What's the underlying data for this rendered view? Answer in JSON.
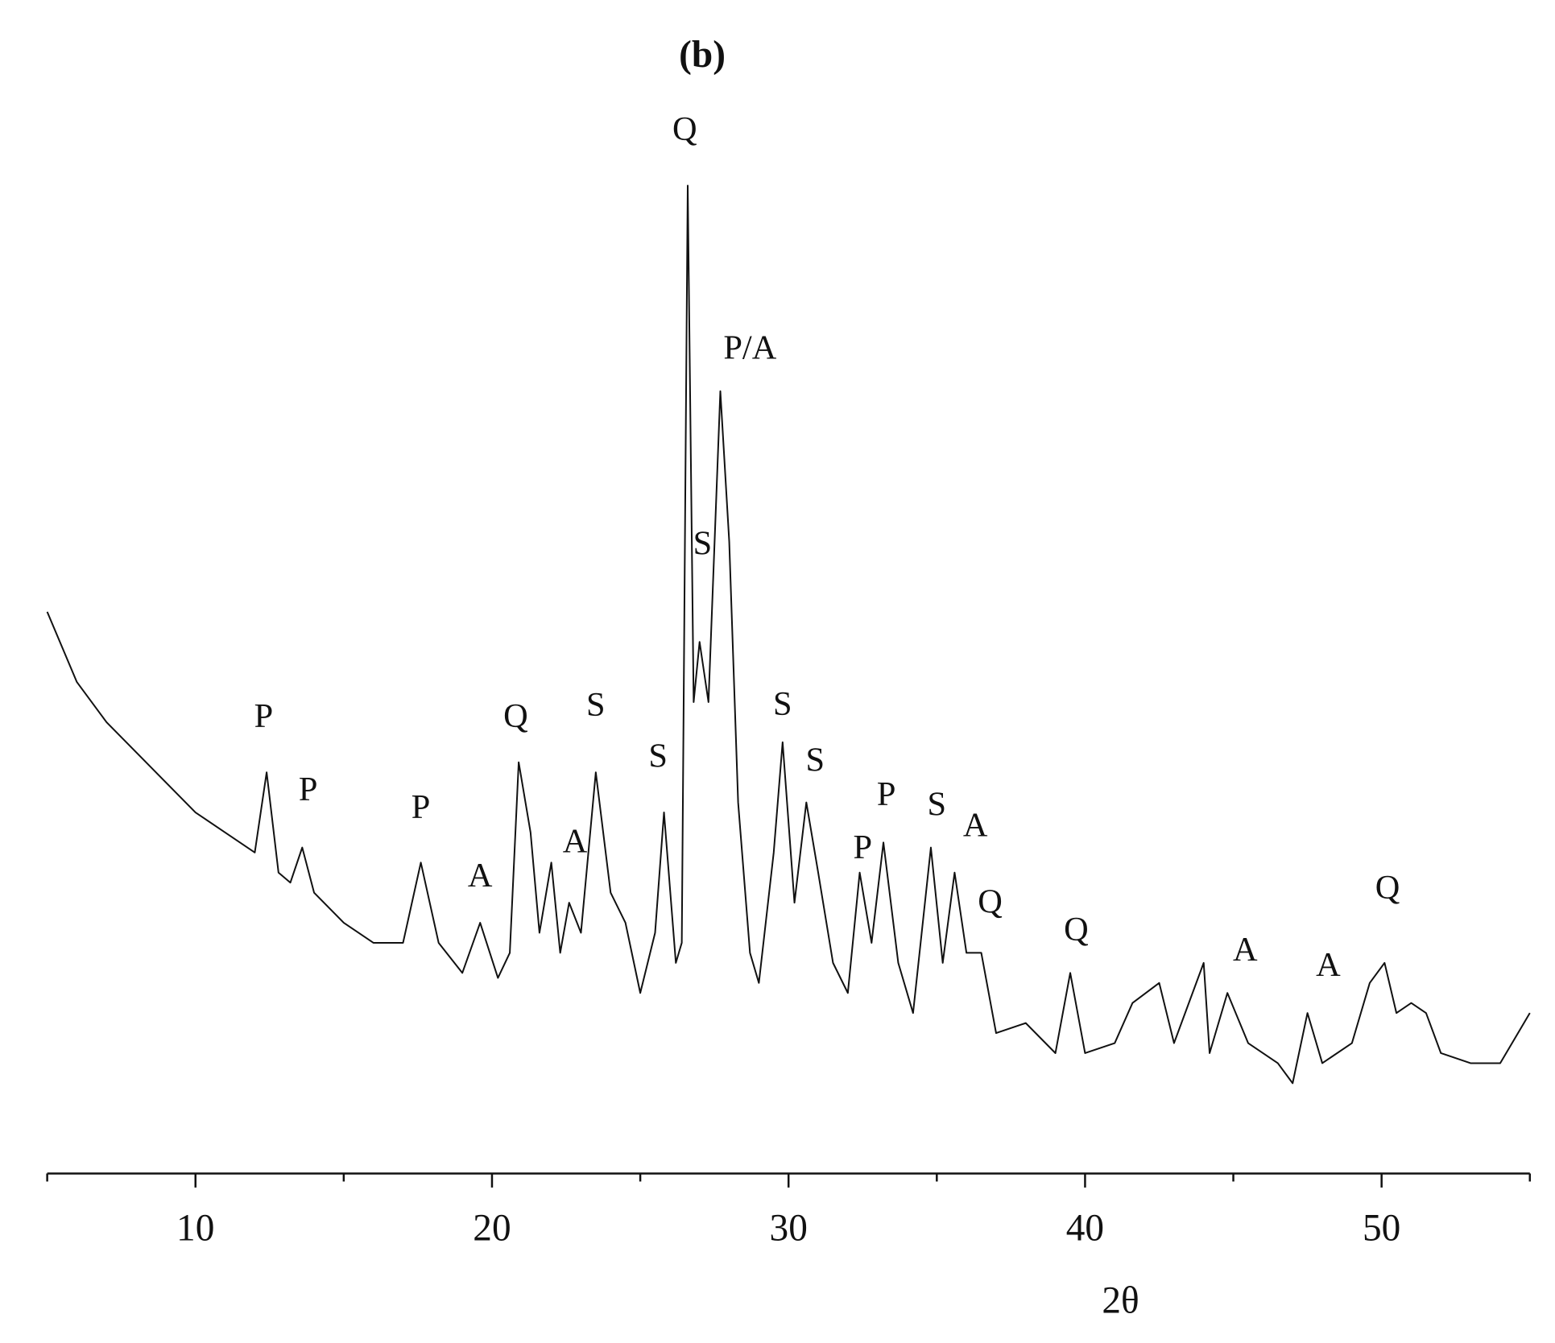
{
  "chart_data": {
    "type": "line",
    "title": "(b)",
    "x_label": "2θ",
    "xlim": [
      5,
      55
    ],
    "xticks": [
      10,
      20,
      30,
      40,
      50
    ],
    "xticks_minor": [
      5,
      15,
      25,
      35,
      45,
      55
    ],
    "ylim": [
      0,
      100
    ],
    "grid": false,
    "series": [
      {
        "color": "#111111",
        "x": [
          5,
          6,
          7,
          8,
          9,
          10,
          11,
          12,
          12.4,
          12.8,
          13.2,
          13.6,
          14,
          15,
          16,
          17,
          17.6,
          18.2,
          19,
          19.6,
          20.2,
          20.6,
          20.9,
          21.3,
          21.6,
          22,
          22.3,
          22.6,
          23,
          23.5,
          24,
          24.5,
          25,
          25.5,
          25.8,
          26.2,
          26.4,
          26.6,
          26.8,
          27,
          27.3,
          27.7,
          28,
          28.3,
          28.7,
          29,
          29.5,
          29.8,
          30.2,
          30.6,
          31,
          31.5,
          32,
          32.4,
          32.8,
          33.2,
          33.7,
          34.2,
          34.8,
          35.2,
          35.6,
          36,
          36.5,
          37,
          38,
          39,
          39.5,
          40,
          41,
          41.6,
          42.5,
          43,
          44,
          44.2,
          44.8,
          45.5,
          46.5,
          47,
          47.5,
          48,
          49,
          49.6,
          50.1,
          50.5,
          51,
          51.5,
          52,
          53,
          54,
          55
        ],
        "values": [
          56,
          49,
          45,
          42,
          39,
          36,
          34,
          32,
          40,
          30,
          29,
          32.5,
          28,
          25,
          23,
          23,
          31,
          23,
          20,
          25,
          19.5,
          22,
          41,
          34,
          24,
          31,
          22,
          27,
          24,
          40,
          28,
          25,
          18,
          24,
          36,
          21,
          23,
          98.5,
          47,
          53,
          47,
          78,
          63,
          37,
          22,
          19,
          32,
          43,
          27,
          37,
          30,
          21,
          18,
          30,
          23,
          33,
          21,
          16,
          32.5,
          21,
          30,
          22,
          22,
          14,
          15,
          12,
          20,
          12,
          13,
          17,
          19,
          13,
          21,
          12,
          18,
          13,
          11,
          9,
          16,
          11,
          13,
          19,
          21,
          16,
          17,
          16,
          12,
          11,
          11,
          16
        ]
      }
    ],
    "annotations": [
      {
        "text": "P",
        "x": 12.3,
        "y": 45.3
      },
      {
        "text": "P",
        "x": 13.8,
        "y": 38
      },
      {
        "text": "P",
        "x": 17.6,
        "y": 36.2
      },
      {
        "text": "A",
        "x": 19.6,
        "y": 29.4
      },
      {
        "text": "Q",
        "x": 20.8,
        "y": 45.3
      },
      {
        "text": "A",
        "x": 22.8,
        "y": 32.8
      },
      {
        "text": "S",
        "x": 23.5,
        "y": 46.4
      },
      {
        "text": "S",
        "x": 25.6,
        "y": 41.3
      },
      {
        "text": "Q",
        "x": 26.5,
        "y": 103.8
      },
      {
        "text": "P/A",
        "x": 28.7,
        "y": 82
      },
      {
        "text": "S",
        "x": 27.1,
        "y": 62.5
      },
      {
        "text": "S",
        "x": 29.8,
        "y": 46.5
      },
      {
        "text": "S",
        "x": 30.9,
        "y": 40.9
      },
      {
        "text": "P",
        "x": 33.3,
        "y": 37.5
      },
      {
        "text": "P",
        "x": 32.5,
        "y": 32.2
      },
      {
        "text": "S",
        "x": 35.0,
        "y": 36.5
      },
      {
        "text": "A",
        "x": 36.3,
        "y": 34.4
      },
      {
        "text": "Q",
        "x": 36.8,
        "y": 26.8
      },
      {
        "text": "Q",
        "x": 39.7,
        "y": 24
      },
      {
        "text": "A",
        "x": 45.4,
        "y": 22
      },
      {
        "text": "A",
        "x": 48.2,
        "y": 20.5
      },
      {
        "text": "Q",
        "x": 50.2,
        "y": 28.2
      }
    ]
  }
}
